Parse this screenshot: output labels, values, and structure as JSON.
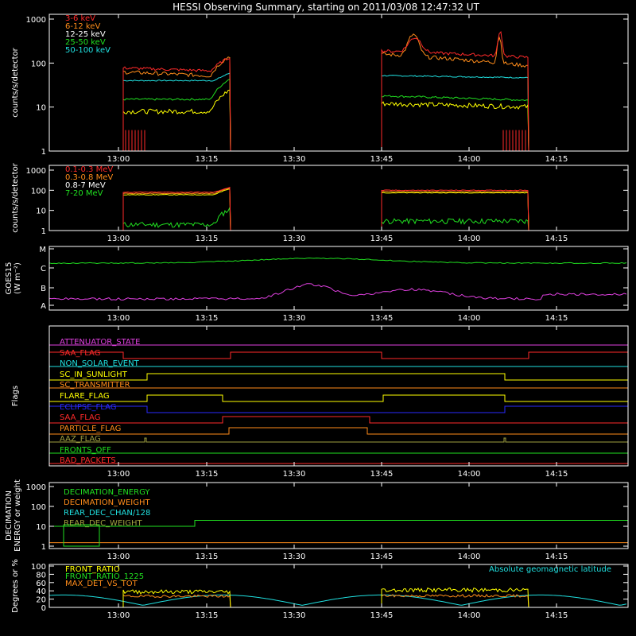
{
  "title": "HESSI Observing Summary, starting on 2011/03/08 12:47:32 UT",
  "time_ticks": [
    "13:00",
    "13:15",
    "13:30",
    "13:45",
    "14:00",
    "14:15"
  ],
  "colors": {
    "bg": "#000000",
    "axis": "#ffffff",
    "red": "#ff2a2a",
    "orange": "#ff8c1a",
    "yellow": "#ffff00",
    "green": "#20e020",
    "cyan": "#20e0e0",
    "magenta": "#e040e0",
    "blue": "#2a2aff",
    "olive": "#a0a040",
    "white": "#ffffff"
  },
  "panels": {
    "counts": {
      "ylabel": "counts/s/detector",
      "y_ticks": [
        "1",
        "10",
        "100",
        "1000"
      ],
      "legend": [
        "3-6 keV",
        "6-12 keV",
        "12-25 keV",
        "25-50 keV",
        "50-100 keV"
      ]
    },
    "high_energy": {
      "ylabel": "counts/s/detector",
      "y_ticks": [
        "1",
        "10",
        "100",
        "1000"
      ],
      "legend": [
        "0.1-0.3 MeV",
        "0.3-0.8 MeV",
        "0.8-7 MeV",
        "7-20 MeV"
      ]
    },
    "goes": {
      "ylabel": "GOES15",
      "ylabel2": "(W m⁻²)",
      "y_ticks": [
        "A",
        "B",
        "C",
        "M"
      ]
    },
    "flags": {
      "ylabel": "Flags",
      "labels": [
        "ATTENUATOR_STATE",
        "SAA_FLAG",
        "NON_SOLAR_EVENT",
        "SC_IN_SUNLIGHT",
        "SC_TRANSMITTER",
        "FLARE_FLAG",
        "ECLIPSE_FLAG",
        "SAA_FLAG",
        "PARTICLE_FLAG",
        "AAZ_FLAG",
        "FRONTS_OFF",
        "BAD_PACKETS"
      ]
    },
    "decimation": {
      "ylabel": "DECIMATION",
      "ylabel2": "ENERGY or weight",
      "y_ticks": [
        "1",
        "10",
        "100",
        "1000"
      ],
      "legend": [
        "DECIMATION_ENERGY",
        "DECIMATION_WEIGHT",
        "REAR_DEC_CHAN/128",
        "REAR_DEC_WEIGHT"
      ]
    },
    "ratio": {
      "ylabel": "Degrees or %",
      "y_ticks": [
        "0",
        "20",
        "40",
        "60",
        "80",
        "100"
      ],
      "legend": [
        "FRONT_RATIO",
        "FRONT_RATIO_1225",
        "MAX_DET_VS_TOT"
      ],
      "right_legend": "Absolute geomagnetic latitude"
    }
  },
  "chart_data": [
    {
      "type": "line",
      "title": "HESSI Observing Summary, starting on 2011/03/08 12:47:32 UT",
      "xlabel": "",
      "ylabel": "counts/s/detector",
      "yscale": "log",
      "ylim": [
        1,
        1000
      ],
      "segments": [
        [
          "13:00",
          "13:20"
        ],
        [
          "13:45",
          "14:10"
        ]
      ],
      "series": [
        {
          "name": "3-6 keV",
          "values": [
            1,
            70,
            85,
            70,
            100,
            1,
            200,
            180,
            130,
            150,
            550,
            1
          ]
        },
        {
          "name": "6-12 keV",
          "values": [
            1,
            60,
            70,
            50,
            110,
            1,
            170,
            120,
            60,
            70,
            420,
            1
          ]
        },
        {
          "name": "12-25 keV",
          "values": [
            1,
            15,
            15,
            15,
            40,
            1,
            20,
            18,
            16,
            17,
            16,
            1
          ]
        },
        {
          "name": "25-50 keV",
          "values": [
            1,
            8,
            9,
            8,
            20,
            1,
            14,
            12,
            12,
            12,
            11,
            1
          ]
        },
        {
          "name": "50-100 keV",
          "values": [
            1,
            40,
            40,
            40,
            60,
            1,
            55,
            50,
            48,
            48,
            48,
            1
          ]
        }
      ]
    },
    {
      "type": "line",
      "ylabel": "counts/s/detector",
      "yscale": "log",
      "ylim": [
        1,
        1000
      ],
      "series": [
        {
          "name": "0.1-0.3 MeV",
          "values": [
            80,
            90,
            100,
            80
          ]
        },
        {
          "name": "0.3-0.8 MeV",
          "values": [
            70,
            80,
            90,
            70
          ]
        },
        {
          "name": "0.8-7 MeV",
          "values": [
            60,
            70,
            80,
            60
          ]
        },
        {
          "name": "7-20 MeV",
          "values": [
            2,
            10,
            3,
            3
          ]
        }
      ]
    },
    {
      "type": "line",
      "ylabel": "GOES15",
      "y_ticks": [
        "A",
        "B",
        "C",
        "M"
      ],
      "series": [
        {
          "name": "upper",
          "values": [
            "C",
            "C",
            "C",
            "C",
            "C"
          ]
        },
        {
          "name": "lower",
          "values": [
            "B",
            "B",
            "B",
            "B",
            "B"
          ]
        }
      ]
    },
    {
      "type": "line",
      "ylabel": "Flags",
      "series_names": [
        "ATTENUATOR_STATE",
        "SAA_FLAG",
        "NON_SOLAR_EVENT",
        "SC_IN_SUNLIGHT",
        "SC_TRANSMITTER",
        "FLARE_FLAG",
        "ECLIPSE_FLAG",
        "SAA_FLAG",
        "PARTICLE_FLAG",
        "AAZ_FLAG",
        "FRONTS_OFF",
        "BAD_PACKETS"
      ]
    },
    {
      "type": "line",
      "ylabel": "DECIMATION ENERGY or weight",
      "yscale": "log",
      "ylim": [
        1,
        1000
      ],
      "series": [
        {
          "name": "DECIMATION_ENERGY",
          "values": [
            10,
            10,
            20,
            20
          ]
        },
        {
          "name": "DECIMATION_WEIGHT",
          "values": [
            1.5,
            1.5,
            1.5,
            1.5
          ]
        }
      ]
    },
    {
      "type": "line",
      "ylabel": "Degrees or %",
      "ylim": [
        0,
        100
      ],
      "series": [
        {
          "name": "FRONT_RATIO",
          "values": [
            35,
            45,
            50,
            45
          ]
        },
        {
          "name": "FRONT_RATIO_1225",
          "values": [
            40,
            45,
            60,
            70
          ]
        },
        {
          "name": "MAX_DET_VS_TOT",
          "values": [
            25,
            27,
            30,
            28
          ]
        },
        {
          "name": "Absolute geomagnetic latitude",
          "values": [
            30,
            5,
            30,
            5,
            30,
            5,
            30
          ]
        }
      ]
    }
  ]
}
